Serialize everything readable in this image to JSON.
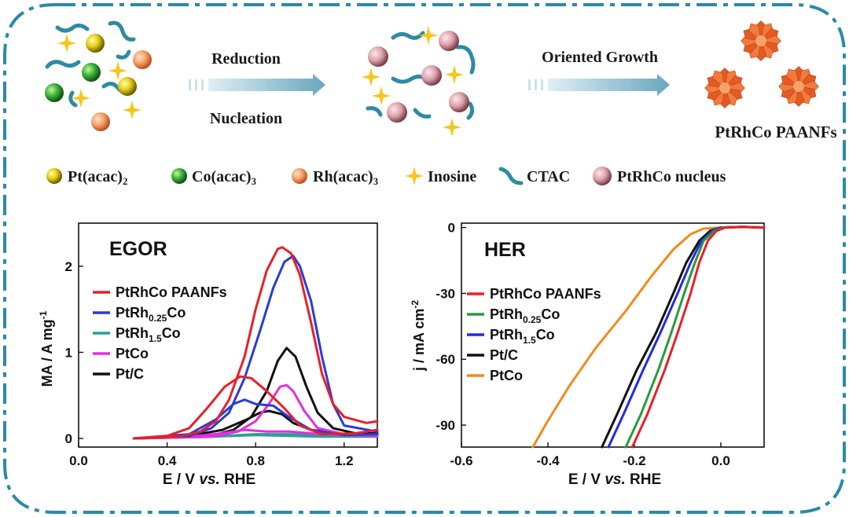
{
  "scheme": {
    "step1_top": "Reduction",
    "step1_bottom": "Nucleation",
    "step2_top": "Oriented Growth",
    "product_label": "PtRhCo PAANFs",
    "legend": [
      {
        "label": "Pt(acac)",
        "sub": "2",
        "icon": "yellow-sphere-icon"
      },
      {
        "label": "Co(acac)",
        "sub": "3",
        "icon": "green-sphere-icon"
      },
      {
        "label": "Rh(acac)",
        "sub": "3",
        "icon": "orange-sphere-icon"
      },
      {
        "label": "Inosine",
        "icon": "star-icon"
      },
      {
        "label": "CTAC",
        "icon": "ctac-chain-icon"
      },
      {
        "label": "PtRhCo nucleus",
        "icon": "pink-sphere-icon"
      }
    ],
    "colors": {
      "border": "#2a8aa6",
      "pt": "#e7d31c",
      "co": "#3cb44a",
      "rh": "#f39b69",
      "nucleus": "#dca1a9",
      "star": "#f7c51b",
      "ctac": "#2f8aa3",
      "flower": "#ef6a2f"
    }
  },
  "chart_data": [
    {
      "type": "line",
      "title": "EGOR",
      "xlabel": "E / V vs. RHE",
      "ylabel": "MA / A mg-1",
      "xlim": [
        0.0,
        1.35
      ],
      "ylim": [
        -0.1,
        2.5
      ],
      "xticks": [
        "0.0",
        "0.4",
        "0.8",
        "1.2"
      ],
      "yticks": [
        "0",
        "1",
        "2"
      ],
      "xtick_values": [
        0.0,
        0.4,
        0.8,
        1.2
      ],
      "ytick_values": [
        0,
        1,
        2
      ],
      "series": [
        {
          "name": "PtRhCo PAANFs",
          "sub": "",
          "color": "#e8202a",
          "forward": [
            [
              0.25,
              0
            ],
            [
              0.45,
              0.02
            ],
            [
              0.55,
              0.08
            ],
            [
              0.62,
              0.2
            ],
            [
              0.68,
              0.45
            ],
            [
              0.75,
              0.95
            ],
            [
              0.8,
              1.5
            ],
            [
              0.85,
              1.95
            ],
            [
              0.9,
              2.2
            ],
            [
              0.92,
              2.22
            ],
            [
              0.96,
              2.15
            ],
            [
              1.0,
              1.9
            ],
            [
              1.05,
              1.35
            ],
            [
              1.1,
              0.75
            ],
            [
              1.15,
              0.4
            ],
            [
              1.2,
              0.25
            ],
            [
              1.3,
              0.18
            ],
            [
              1.35,
              0.2
            ]
          ],
          "backward": [
            [
              1.35,
              0.1
            ],
            [
              1.25,
              0.06
            ],
            [
              1.1,
              0.05
            ],
            [
              1.0,
              0.15
            ],
            [
              0.93,
              0.35
            ],
            [
              0.85,
              0.55
            ],
            [
              0.78,
              0.7
            ],
            [
              0.73,
              0.72
            ],
            [
              0.66,
              0.6
            ],
            [
              0.58,
              0.35
            ],
            [
              0.5,
              0.12
            ],
            [
              0.4,
              0.03
            ],
            [
              0.25,
              0
            ]
          ]
        },
        {
          "name": "PtRh",
          "sub": "0.25",
          "tail": "Co",
          "color": "#2a3cd6",
          "forward": [
            [
              0.25,
              0
            ],
            [
              0.5,
              0.03
            ],
            [
              0.6,
              0.12
            ],
            [
              0.68,
              0.3
            ],
            [
              0.75,
              0.7
            ],
            [
              0.82,
              1.25
            ],
            [
              0.88,
              1.75
            ],
            [
              0.93,
              2.05
            ],
            [
              0.97,
              2.12
            ],
            [
              1.0,
              2.0
            ],
            [
              1.05,
              1.6
            ],
            [
              1.1,
              0.95
            ],
            [
              1.15,
              0.4
            ],
            [
              1.2,
              0.15
            ],
            [
              1.35,
              0.08
            ]
          ],
          "backward": [
            [
              1.35,
              0.05
            ],
            [
              1.2,
              0.04
            ],
            [
              1.05,
              0.1
            ],
            [
              0.95,
              0.25
            ],
            [
              0.88,
              0.38
            ],
            [
              0.8,
              0.4
            ],
            [
              0.75,
              0.45
            ],
            [
              0.7,
              0.4
            ],
            [
              0.62,
              0.22
            ],
            [
              0.5,
              0.05
            ],
            [
              0.25,
              0
            ]
          ]
        },
        {
          "name": "PtRh",
          "sub": "1.5",
          "tail": "Co",
          "color": "#2a9f98",
          "forward": [
            [
              0.25,
              0
            ],
            [
              0.6,
              0.02
            ],
            [
              0.8,
              0.05
            ],
            [
              0.95,
              0.05
            ],
            [
              1.1,
              0.04
            ],
            [
              1.35,
              0.04
            ]
          ],
          "backward": [
            [
              1.35,
              0.02
            ],
            [
              1.1,
              0.02
            ],
            [
              0.95,
              0.03
            ],
            [
              0.8,
              0.04
            ],
            [
              0.6,
              0.02
            ],
            [
              0.25,
              0
            ]
          ]
        },
        {
          "name": "PtCo",
          "sub": "",
          "color": "#e62de0",
          "forward": [
            [
              0.25,
              0
            ],
            [
              0.6,
              0.02
            ],
            [
              0.72,
              0.08
            ],
            [
              0.8,
              0.2
            ],
            [
              0.86,
              0.4
            ],
            [
              0.91,
              0.6
            ],
            [
              0.94,
              0.62
            ],
            [
              0.97,
              0.55
            ],
            [
              1.02,
              0.32
            ],
            [
              1.08,
              0.12
            ],
            [
              1.2,
              0.05
            ],
            [
              1.35,
              0.04
            ]
          ],
          "backward": [
            [
              1.35,
              0.03
            ],
            [
              1.2,
              0.04
            ],
            [
              1.05,
              0.06
            ],
            [
              0.95,
              0.08
            ],
            [
              0.85,
              0.08
            ],
            [
              0.75,
              0.1
            ],
            [
              0.65,
              0.06
            ],
            [
              0.5,
              0.02
            ],
            [
              0.25,
              0
            ]
          ]
        },
        {
          "name": "Pt/C",
          "sub": "",
          "color": "#111111",
          "forward": [
            [
              0.25,
              0
            ],
            [
              0.6,
              0.03
            ],
            [
              0.7,
              0.1
            ],
            [
              0.78,
              0.25
            ],
            [
              0.85,
              0.55
            ],
            [
              0.9,
              0.9
            ],
            [
              0.94,
              1.05
            ],
            [
              0.98,
              0.95
            ],
            [
              1.03,
              0.6
            ],
            [
              1.08,
              0.3
            ],
            [
              1.15,
              0.12
            ],
            [
              1.25,
              0.06
            ],
            [
              1.35,
              0.06
            ]
          ],
          "backward": [
            [
              1.35,
              0.04
            ],
            [
              1.2,
              0.05
            ],
            [
              1.05,
              0.1
            ],
            [
              0.97,
              0.18
            ],
            [
              0.92,
              0.28
            ],
            [
              0.86,
              0.32
            ],
            [
              0.82,
              0.3
            ],
            [
              0.76,
              0.22
            ],
            [
              0.65,
              0.1
            ],
            [
              0.5,
              0.03
            ],
            [
              0.25,
              0
            ]
          ]
        }
      ]
    },
    {
      "type": "line",
      "title": "HER",
      "xlabel": "E / V vs. RHE",
      "ylabel": "j / mA cm-2",
      "xlim": [
        -0.6,
        0.1
      ],
      "ylim": [
        -100,
        2
      ],
      "xticks": [
        "-0.6",
        "-0.4",
        "-0.2",
        "0.0"
      ],
      "yticks": [
        "0",
        "-30",
        "-60",
        "-90"
      ],
      "xtick_values": [
        -0.6,
        -0.4,
        -0.2,
        0.0
      ],
      "ytick_values": [
        0,
        -30,
        -60,
        -90
      ],
      "series": [
        {
          "name": "PtRhCo PAANFs",
          "sub": "",
          "color": "#e8202a",
          "points": [
            [
              -0.205,
              -100
            ],
            [
              -0.17,
              -85
            ],
            [
              -0.13,
              -65
            ],
            [
              -0.1,
              -48
            ],
            [
              -0.07,
              -30
            ],
            [
              -0.05,
              -16
            ],
            [
              -0.03,
              -6
            ],
            [
              -0.01,
              -1.5
            ],
            [
              0.01,
              0
            ],
            [
              0.05,
              0.3
            ],
            [
              0.1,
              0
            ]
          ]
        },
        {
          "name": "PtRh",
          "sub": "0.25",
          "tail": "Co",
          "color": "#2a9a3c",
          "points": [
            [
              -0.22,
              -100
            ],
            [
              -0.185,
              -85
            ],
            [
              -0.145,
              -65
            ],
            [
              -0.115,
              -48
            ],
            [
              -0.085,
              -30
            ],
            [
              -0.06,
              -16
            ],
            [
              -0.04,
              -6
            ],
            [
              -0.015,
              -1.5
            ],
            [
              0.005,
              0
            ],
            [
              0.05,
              0.3
            ],
            [
              0.1,
              0
            ]
          ]
        },
        {
          "name": "PtRh",
          "sub": "1.5",
          "tail": "Co",
          "color": "#1f2ce6",
          "points": [
            [
              -0.26,
              -100
            ],
            [
              -0.225,
              -85
            ],
            [
              -0.18,
              -65
            ],
            [
              -0.14,
              -48
            ],
            [
              -0.1,
              -30
            ],
            [
              -0.07,
              -16
            ],
            [
              -0.045,
              -6
            ],
            [
              -0.02,
              -1.5
            ],
            [
              0.0,
              0
            ],
            [
              0.05,
              0.3
            ],
            [
              0.1,
              0
            ]
          ]
        },
        {
          "name": "Pt/C",
          "sub": "",
          "color": "#111111",
          "points": [
            [
              -0.275,
              -100
            ],
            [
              -0.24,
              -85
            ],
            [
              -0.195,
              -65
            ],
            [
              -0.15,
              -48
            ],
            [
              -0.11,
              -30
            ],
            [
              -0.08,
              -16
            ],
            [
              -0.05,
              -6
            ],
            [
              -0.025,
              -1.5
            ],
            [
              0.0,
              0
            ],
            [
              0.05,
              0.3
            ],
            [
              0.1,
              0
            ]
          ]
        },
        {
          "name": "PtCo",
          "sub": "",
          "color": "#f28a1c",
          "points": [
            [
              -0.435,
              -100
            ],
            [
              -0.4,
              -88
            ],
            [
              -0.35,
              -72
            ],
            [
              -0.29,
              -55
            ],
            [
              -0.22,
              -38
            ],
            [
              -0.16,
              -22
            ],
            [
              -0.11,
              -10
            ],
            [
              -0.07,
              -3
            ],
            [
              -0.04,
              -0.5
            ],
            [
              0.0,
              0
            ],
            [
              0.05,
              0.2
            ],
            [
              0.1,
              0
            ]
          ]
        }
      ]
    }
  ]
}
